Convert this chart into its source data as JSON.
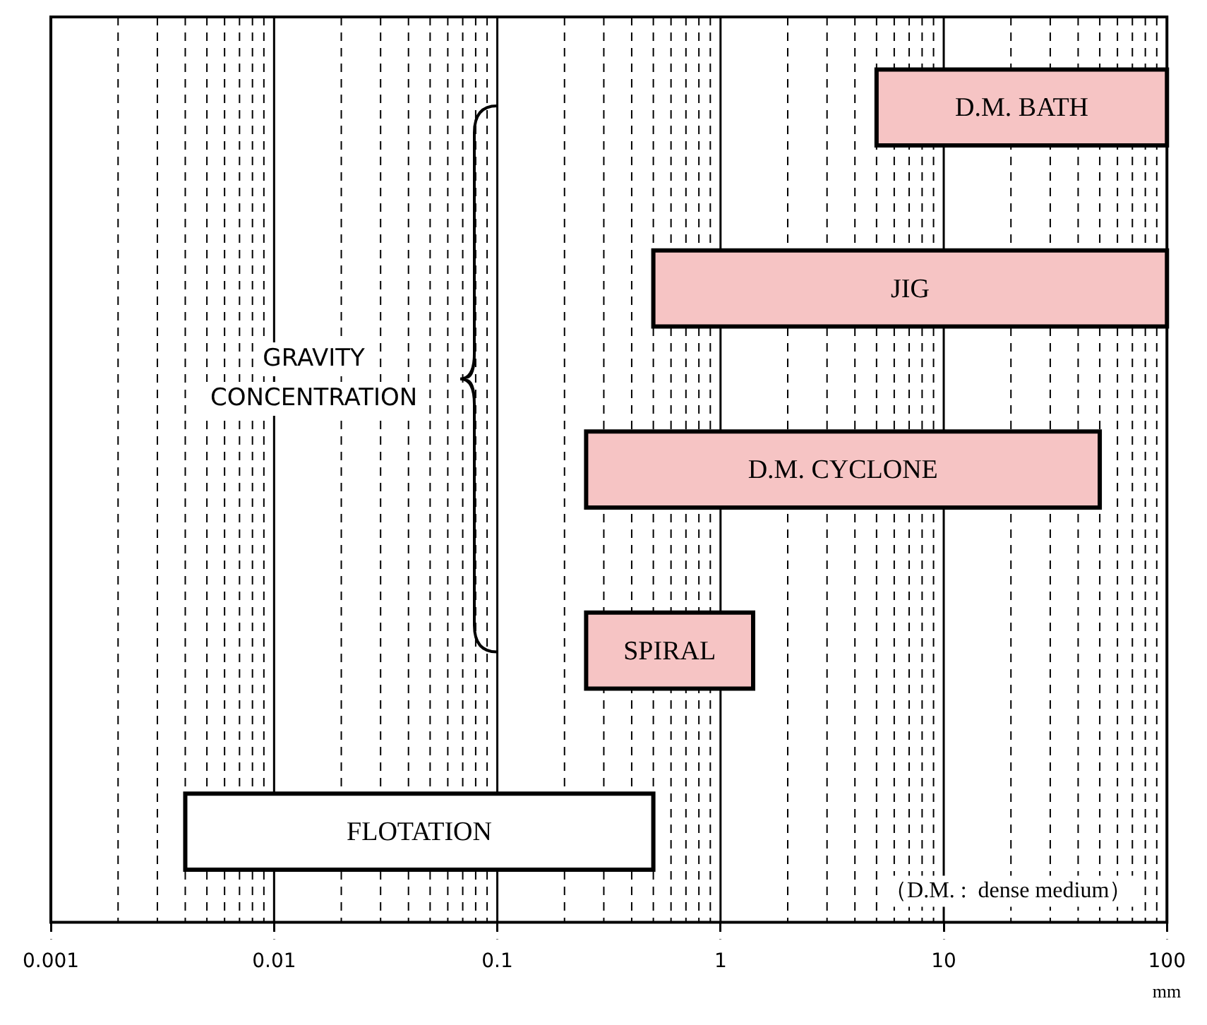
{
  "chart_data": {
    "type": "bar",
    "orientation": "horizontal",
    "xlabel": "mm",
    "log": "x",
    "grid": "x",
    "tick_labels": "x",
    "legend": false,
    "categories": [
      "D.M. BATH",
      "JIG",
      "D.M. CYCLONE",
      "SPIRAL",
      "FLOTATION"
    ],
    "base": [
      5,
      0.5,
      0.25,
      0.25,
      0.004
    ],
    "values": [
      95,
      99.5,
      49.75,
      1.15,
      0.496
    ],
    "colors": [
      "#f6c4c4",
      "#f6c4c4",
      "#f6c4c4",
      "#f6c4c4",
      "#ffffff"
    ],
    "xlim": [
      0.001,
      100
    ],
    "xticks": [
      0.001,
      {
        "value": 0.002,
        "label": null
      },
      {
        "value": 0.003,
        "label": null
      },
      {
        "value": 0.004,
        "label": null
      },
      {
        "value": 0.005,
        "label": null
      },
      {
        "value": 0.006,
        "label": null
      },
      {
        "value": 0.007,
        "label": null
      },
      {
        "value": 0.008,
        "label": null
      },
      {
        "value": 0.009,
        "label": null
      },
      0.01,
      {
        "value": 0.02,
        "label": null
      },
      {
        "value": 0.03,
        "label": null
      },
      {
        "value": 0.04,
        "label": null
      },
      {
        "value": 0.05,
        "label": null
      },
      {
        "value": 0.06,
        "label": null
      },
      {
        "value": 0.07,
        "label": null
      },
      {
        "value": 0.08,
        "label": null
      },
      {
        "value": 0.09,
        "label": null
      },
      0.1,
      {
        "value": 0.2,
        "label": null
      },
      {
        "value": 0.3,
        "label": null
      },
      {
        "value": 0.4,
        "label": null
      },
      {
        "value": 0.5,
        "label": null
      },
      {
        "value": 0.6,
        "label": null
      },
      {
        "value": 0.7,
        "label": null
      },
      {
        "value": 0.8,
        "label": null
      },
      {
        "value": 0.9,
        "label": null
      },
      1,
      {
        "value": 2,
        "label": null
      },
      {
        "value": 3,
        "label": null
      },
      {
        "value": 4,
        "label": null
      },
      {
        "value": 5,
        "label": null
      },
      {
        "value": 6,
        "label": null
      },
      {
        "value": 7,
        "label": null
      },
      {
        "value": 8,
        "label": null
      },
      {
        "value": 9,
        "label": null
      },
      10,
      {
        "value": 20,
        "label": null
      },
      {
        "value": 30,
        "label": null
      },
      {
        "value": 40,
        "label": null
      },
      {
        "value": 50,
        "label": null
      },
      {
        "value": 60,
        "label": null
      },
      {
        "value": 70,
        "label": null
      },
      {
        "value": 80,
        "label": null
      },
      {
        "value": 90,
        "label": null
      },
      100
    ],
    "annotations": [
      "GRAVITY CONCENTRATION",
      "（D.M. :  dense medium）"
    ]
  }
}
